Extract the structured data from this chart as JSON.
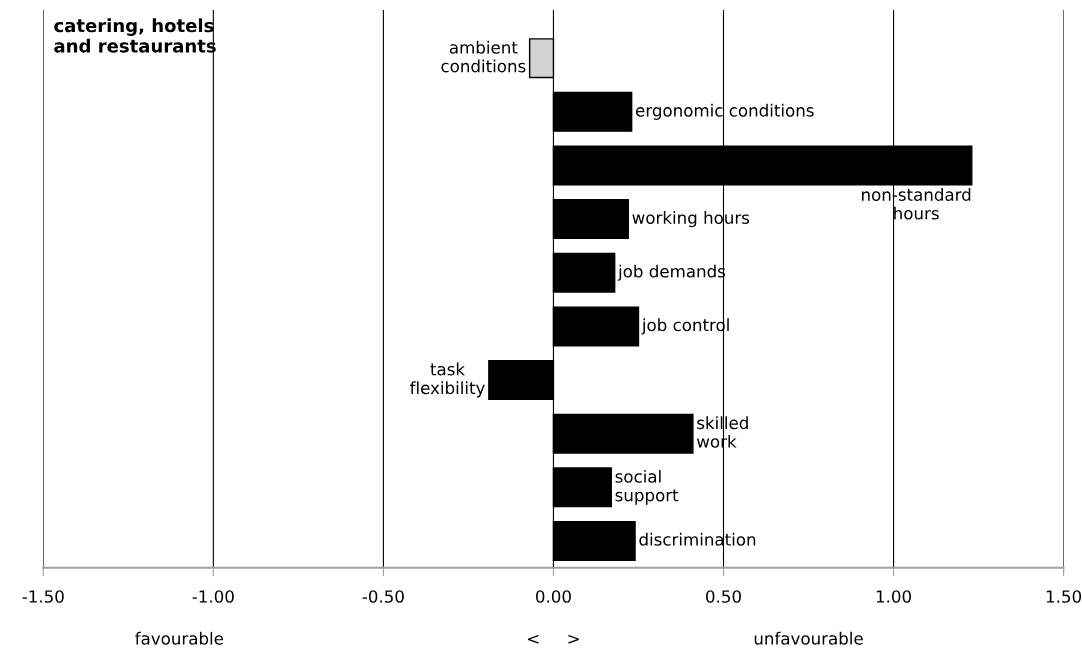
{
  "chart_data": {
    "type": "bar",
    "orientation": "horizontal",
    "title": "catering, hotels\nand restaurants",
    "categories": [
      "ambient\nconditions",
      "ergonomic conditions",
      "non-standard\nhours",
      "working hours",
      "job demands",
      "job control",
      "task\nflexibility",
      "skilled\nwork",
      "social\nsupport",
      "discrimination"
    ],
    "values": [
      -0.07,
      0.23,
      1.23,
      0.22,
      0.18,
      0.25,
      -0.19,
      0.41,
      0.17,
      0.24
    ],
    "colors": [
      "#d3d3d3",
      "#000000",
      "#000000",
      "#000000",
      "#000000",
      "#000000",
      "#000000",
      "#000000",
      "#000000",
      "#000000"
    ],
    "xlim": [
      -1.5,
      1.5
    ],
    "xticks": [
      {
        "value": -1.5,
        "label": "-1.50"
      },
      {
        "value": -1.0,
        "label": "-1.00"
      },
      {
        "value": -0.5,
        "label": "-0.50"
      },
      {
        "value": 0.0,
        "label": "0.00"
      },
      {
        "value": 0.5,
        "label": "0.50"
      },
      {
        "value": 1.0,
        "label": "1.00"
      },
      {
        "value": 1.5,
        "label": "1.50"
      }
    ],
    "grid": "x",
    "annotations": [
      "favourable",
      "<     >",
      "unfavourable"
    ]
  }
}
